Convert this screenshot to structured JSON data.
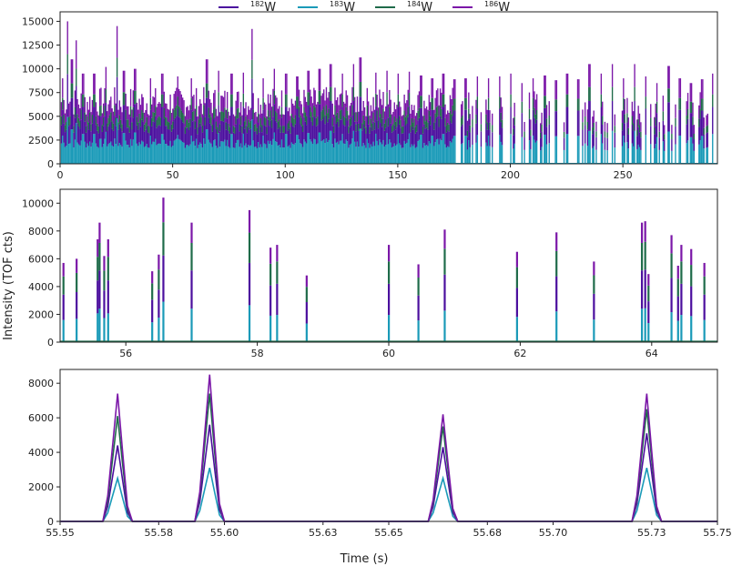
{
  "chart_data": [
    {
      "type": "area",
      "panel": "full-acquisition",
      "xlim": [
        0,
        292
      ],
      "ylim": [
        0,
        16000
      ],
      "xticks": [
        0,
        50,
        100,
        150,
        200,
        250
      ],
      "yticks": [
        0,
        2500,
        5000,
        7500,
        10000,
        12500,
        15000
      ],
      "stacked_order": [
        "183W",
        "182W",
        "184W",
        "186W"
      ],
      "peaks": [
        {
          "x": 1,
          "y": 9000
        },
        {
          "x": 3,
          "y": 15000
        },
        {
          "x": 5,
          "y": 11000
        },
        {
          "x": 7,
          "y": 13000
        },
        {
          "x": 10,
          "y": 9500
        },
        {
          "x": 15,
          "y": 9500
        },
        {
          "x": 20,
          "y": 10200
        },
        {
          "x": 25,
          "y": 14500
        },
        {
          "x": 28,
          "y": 9800
        },
        {
          "x": 33,
          "y": 10000
        },
        {
          "x": 40,
          "y": 9000
        },
        {
          "x": 45,
          "y": 9500
        },
        {
          "x": 52,
          "y": 9200
        },
        {
          "x": 58,
          "y": 9000
        },
        {
          "x": 65,
          "y": 11000
        },
        {
          "x": 70,
          "y": 9800
        },
        {
          "x": 76,
          "y": 9500
        },
        {
          "x": 81,
          "y": 9600
        },
        {
          "x": 85,
          "y": 14200
        },
        {
          "x": 90,
          "y": 9000
        },
        {
          "x": 95,
          "y": 10000
        },
        {
          "x": 100,
          "y": 9500
        },
        {
          "x": 105,
          "y": 9200
        },
        {
          "x": 110,
          "y": 9800
        },
        {
          "x": 115,
          "y": 10000
        },
        {
          "x": 120,
          "y": 10500
        },
        {
          "x": 125,
          "y": 9500
        },
        {
          "x": 130,
          "y": 10500
        },
        {
          "x": 133,
          "y": 11200
        },
        {
          "x": 140,
          "y": 9600
        },
        {
          "x": 145,
          "y": 9800
        },
        {
          "x": 150,
          "y": 9500
        },
        {
          "x": 155,
          "y": 9700
        },
        {
          "x": 160,
          "y": 9300
        },
        {
          "x": 165,
          "y": 9000
        },
        {
          "x": 170,
          "y": 9500
        },
        {
          "x": 175,
          "y": 8900
        },
        {
          "x": 180,
          "y": 9000
        },
        {
          "x": 185,
          "y": 9200
        },
        {
          "x": 190,
          "y": 9000
        },
        {
          "x": 195,
          "y": 9200
        },
        {
          "x": 200,
          "y": 9500
        },
        {
          "x": 205,
          "y": 8500
        },
        {
          "x": 210,
          "y": 9000
        },
        {
          "x": 215,
          "y": 9300
        },
        {
          "x": 220,
          "y": 8800
        },
        {
          "x": 225,
          "y": 9500
        },
        {
          "x": 230,
          "y": 8900
        },
        {
          "x": 235,
          "y": 10500
        },
        {
          "x": 240,
          "y": 9500
        },
        {
          "x": 245,
          "y": 10500
        },
        {
          "x": 250,
          "y": 9000
        },
        {
          "x": 255,
          "y": 10500
        },
        {
          "x": 260,
          "y": 9200
        },
        {
          "x": 265,
          "y": 8500
        },
        {
          "x": 270,
          "y": 10300
        },
        {
          "x": 275,
          "y": 9000
        },
        {
          "x": 280,
          "y": 8500
        },
        {
          "x": 285,
          "y": 8900
        },
        {
          "x": 290,
          "y": 9500
        }
      ]
    },
    {
      "type": "area",
      "panel": "zoom-1",
      "xlim": [
        55,
        65
      ],
      "ylim": [
        0,
        11000
      ],
      "xticks": [
        56,
        58,
        60,
        62,
        64
      ],
      "yticks": [
        0,
        2000,
        4000,
        6000,
        8000,
        10000
      ],
      "peaks": [
        {
          "x": 55.05,
          "y": 5700
        },
        {
          "x": 55.25,
          "y": 6000
        },
        {
          "x": 55.57,
          "y": 7400
        },
        {
          "x": 55.6,
          "y": 8600
        },
        {
          "x": 55.67,
          "y": 6200
        },
        {
          "x": 55.73,
          "y": 7400
        },
        {
          "x": 56.4,
          "y": 5100
        },
        {
          "x": 56.5,
          "y": 6300
        },
        {
          "x": 56.57,
          "y": 10400
        },
        {
          "x": 57.0,
          "y": 8600
        },
        {
          "x": 57.88,
          "y": 9500
        },
        {
          "x": 58.2,
          "y": 6800
        },
        {
          "x": 58.3,
          "y": 7000
        },
        {
          "x": 58.75,
          "y": 4800
        },
        {
          "x": 60.0,
          "y": 7000
        },
        {
          "x": 60.45,
          "y": 5600
        },
        {
          "x": 60.85,
          "y": 8100
        },
        {
          "x": 61.95,
          "y": 6500
        },
        {
          "x": 62.55,
          "y": 7900
        },
        {
          "x": 63.12,
          "y": 5800
        },
        {
          "x": 63.85,
          "y": 8600
        },
        {
          "x": 63.9,
          "y": 8700
        },
        {
          "x": 63.95,
          "y": 4900
        },
        {
          "x": 64.3,
          "y": 7700
        },
        {
          "x": 64.4,
          "y": 5500
        },
        {
          "x": 64.45,
          "y": 7000
        },
        {
          "x": 64.6,
          "y": 6700
        },
        {
          "x": 64.8,
          "y": 5700
        }
      ]
    },
    {
      "type": "line",
      "panel": "zoom-2",
      "xlim": [
        55.55,
        55.75
      ],
      "ylim": [
        0,
        8800
      ],
      "xticks": [
        "55.55",
        "55.58",
        "55.60",
        "55.63",
        "55.65",
        "55.68",
        "55.70",
        "55.73",
        "55.75"
      ],
      "yticks": [
        0,
        2000,
        4000,
        6000,
        8000
      ],
      "peak_profile_x": [
        -0.0045,
        -0.003,
        -0.0015,
        0,
        0.0015,
        0.003,
        0.0045
      ],
      "peak_profile_frac": [
        0,
        0.2,
        0.6,
        1.0,
        0.55,
        0.12,
        0
      ],
      "peaks": [
        {
          "x": 55.5675,
          "series": {
            "183W": 2500,
            "182W": 4400,
            "184W": 6100,
            "186W": 7400
          }
        },
        {
          "x": 55.5955,
          "series": {
            "183W": 3100,
            "182W": 5600,
            "184W": 7400,
            "186W": 8500
          }
        },
        {
          "x": 55.6665,
          "series": {
            "183W": 2500,
            "182W": 4300,
            "184W": 5500,
            "186W": 6200
          }
        },
        {
          "x": 55.7285,
          "series": {
            "183W": 3100,
            "182W": 5100,
            "184W": 6500,
            "186W": 7400
          }
        }
      ]
    }
  ],
  "legend": {
    "items": [
      {
        "mass": "182",
        "element": "W",
        "color": "#4b0f9e"
      },
      {
        "mass": "183",
        "element": "W",
        "color": "#1a9ab8"
      },
      {
        "mass": "184",
        "element": "W",
        "color": "#1f6b4a"
      },
      {
        "mass": "186",
        "element": "W",
        "color": "#7b17a8"
      }
    ]
  },
  "axes": {
    "ylabel": "Intensity (TOF cts)",
    "xlabel": "Time (s)"
  }
}
